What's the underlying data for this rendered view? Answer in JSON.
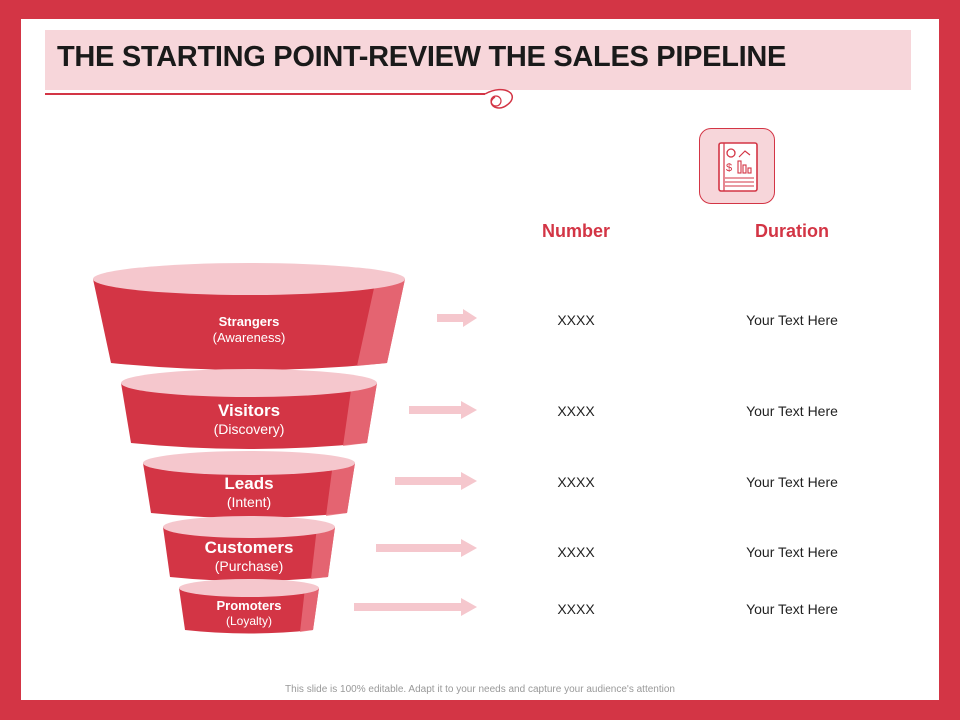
{
  "title": "THE STARTING POINT-REVIEW THE SALES PIPELINE",
  "columns": {
    "number": "Number",
    "duration": "Duration"
  },
  "stages": [
    {
      "name": "Strangers",
      "sub": "(Awareness)",
      "number": "XXXX",
      "duration": "Your Text Here"
    },
    {
      "name": "Visitors",
      "sub": "(Discovery)",
      "number": "XXXX",
      "duration": "Your Text Here"
    },
    {
      "name": "Leads",
      "sub": "(Intent)",
      "number": "XXXX",
      "duration": "Your Text Here"
    },
    {
      "name": "Customers",
      "sub": "(Purchase)",
      "number": "XXXX",
      "duration": "Your Text Here"
    },
    {
      "name": "Promoters",
      "sub": "(Loyalty)",
      "number": "XXXX",
      "duration": "Your Text Here"
    }
  ],
  "icon": "report-chart-icon",
  "footer": "This slide is 100% editable. Adapt it to your needs and capture your audience's attention",
  "colors": {
    "primary": "#d33545",
    "light": "#f7d6da",
    "frame": "#d33545"
  }
}
